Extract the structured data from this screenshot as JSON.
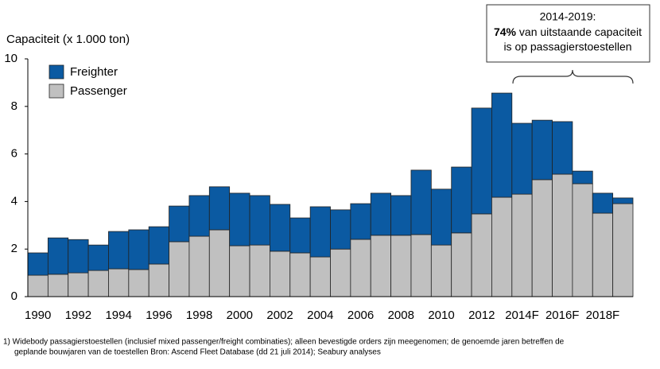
{
  "chart_data": {
    "type": "stacked_bar",
    "y_axis_label": "Capaciteit (x 1.000 ton)",
    "categories": [
      "1990",
      null,
      "1992",
      null,
      "1994",
      null,
      "1996",
      null,
      "1998",
      null,
      "2000",
      null,
      "2002",
      null,
      "2004",
      null,
      "2006",
      null,
      "2008",
      null,
      "2010",
      null,
      "2012",
      null,
      "2014F",
      null,
      "2016F",
      null,
      "2018F",
      null
    ],
    "series": [
      {
        "name": "Passenger",
        "color": "#c0c0c0",
        "values": [
          0.9,
          0.94,
          1.0,
          1.1,
          1.17,
          1.14,
          1.37,
          2.31,
          2.54,
          2.81,
          2.14,
          2.17,
          1.91,
          1.84,
          1.67,
          2.0,
          2.41,
          2.58,
          2.58,
          2.61,
          2.17,
          2.68,
          3.48,
          4.18,
          4.31,
          4.92,
          5.15,
          4.75,
          3.51,
          3.91
        ]
      },
      {
        "name": "Freighter",
        "color": "#0b5aa2",
        "values": [
          0.94,
          1.53,
          1.4,
          1.07,
          1.57,
          1.67,
          1.57,
          1.5,
          1.71,
          1.81,
          2.21,
          2.08,
          1.97,
          1.47,
          2.11,
          1.65,
          1.5,
          1.77,
          1.67,
          2.71,
          2.35,
          2.77,
          4.45,
          4.38,
          2.98,
          2.5,
          2.21,
          0.53,
          0.84,
          0.24
        ]
      }
    ],
    "ylim": [
      0,
      10
    ],
    "yticks": [
      0,
      2,
      4,
      6,
      8,
      10
    ],
    "grid": false,
    "legend": "top-left",
    "annotation": {
      "title": "2014-2019:",
      "bold": "74%",
      "text": " van uitstaande capaciteit",
      "last": "is op passagierstoestellen"
    },
    "footnote": [
      "1) Widebody passagierstoestellen (inclusief mixed passenger/freight combinaties); alleen bevestigde orders zijn meegenomen;  de genoemde jaren betreffen de",
      "geplande bouwjaren van de toestellen  Bron: Ascend Fleet Database (dd 21 juli 2014); Seabury analyses"
    ]
  }
}
